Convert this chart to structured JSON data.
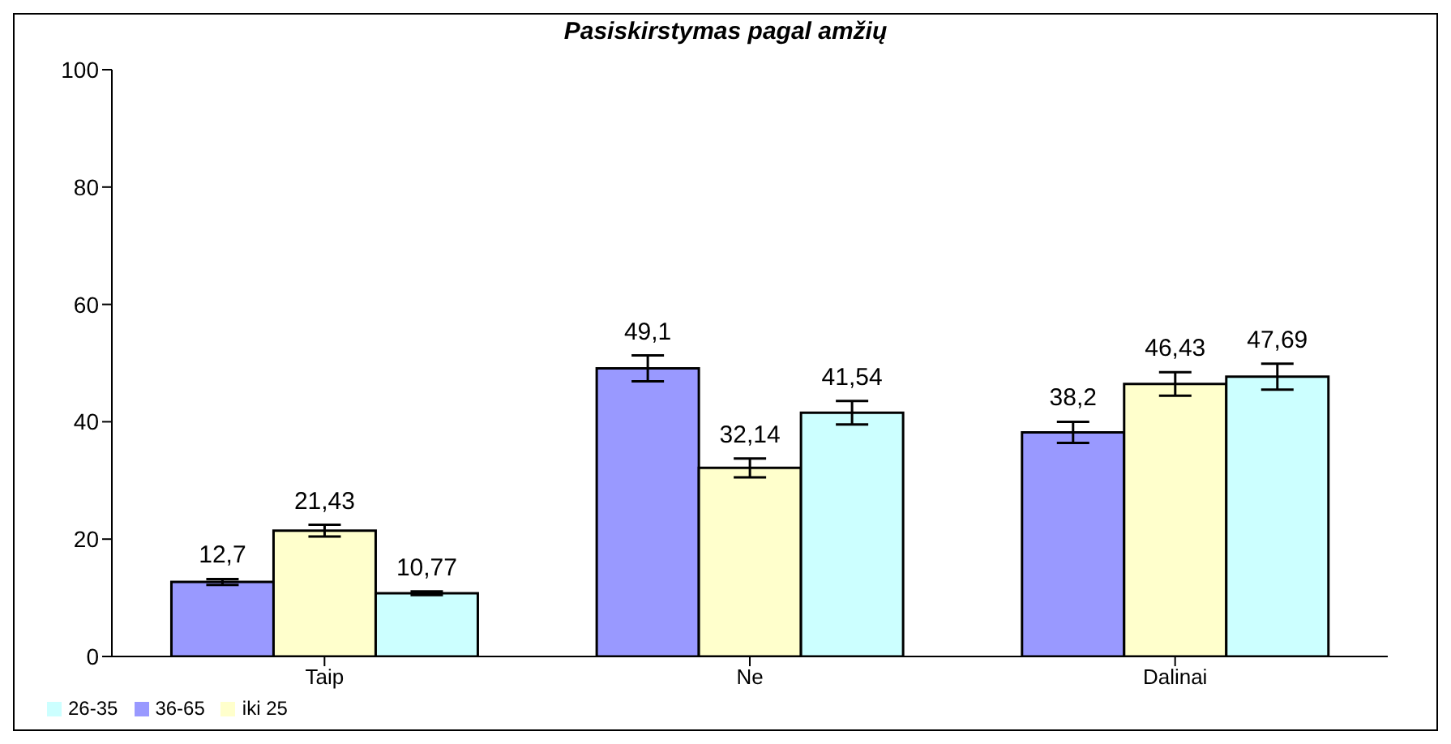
{
  "chart_data": {
    "type": "bar",
    "title": "Pasiskirstymas pagal amžių",
    "categories": [
      "Taip",
      "Ne",
      "Dalinai"
    ],
    "series": [
      {
        "name": "36-65",
        "color": "#9999ff",
        "values": [
          12.7,
          49.1,
          38.2
        ],
        "value_labels": [
          "12,7",
          "49,1",
          "38,2"
        ],
        "errors": [
          0.5,
          2.2,
          1.8
        ]
      },
      {
        "name": "iki 25",
        "color": "#ffffcc",
        "values": [
          21.43,
          32.14,
          46.43
        ],
        "value_labels": [
          "21,43",
          "32,14",
          "46,43"
        ],
        "errors": [
          1,
          1.6,
          2
        ]
      },
      {
        "name": "26-35",
        "color": "#ccffff",
        "values": [
          10.77,
          41.54,
          47.69
        ],
        "value_labels": [
          "10,77",
          "41,54",
          "47,69"
        ],
        "errors": [
          0.3,
          2,
          2.2
        ]
      }
    ],
    "ylim": [
      0,
      100
    ],
    "yticks": [
      0,
      20,
      40,
      60,
      80,
      100
    ],
    "legend": "bottom left"
  }
}
